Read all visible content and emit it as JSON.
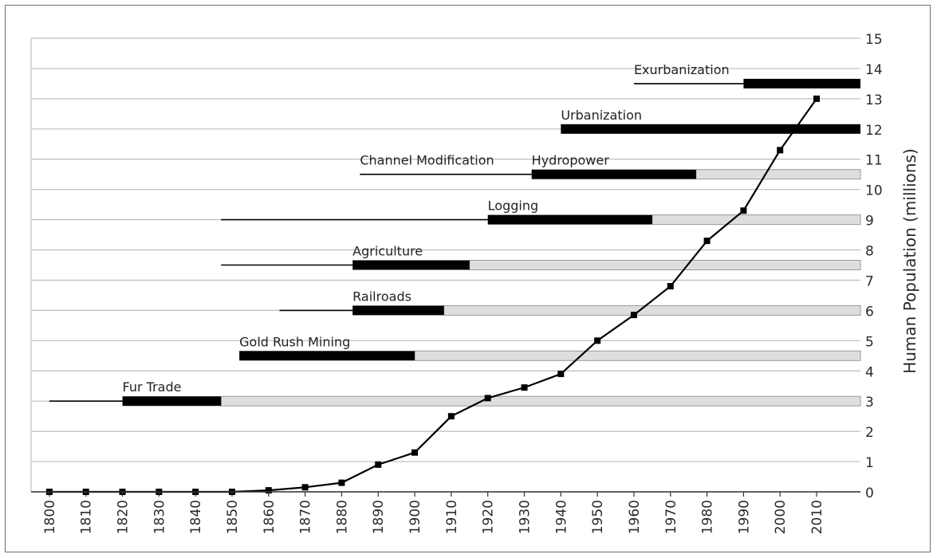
{
  "chart_data": {
    "type": "line",
    "ylabel": "Human Population (millions)",
    "xlabel": "",
    "x": [
      1800,
      1810,
      1820,
      1830,
      1840,
      1850,
      1860,
      1870,
      1880,
      1890,
      1900,
      1910,
      1920,
      1930,
      1940,
      1950,
      1960,
      1970,
      1980,
      1990,
      2000,
      2010
    ],
    "xlim": [
      1795,
      2022
    ],
    "ylim": [
      0,
      15
    ],
    "yticks": [
      0,
      1,
      2,
      3,
      4,
      5,
      6,
      7,
      8,
      9,
      10,
      11,
      12,
      13,
      14,
      15
    ],
    "xticks": [
      1800,
      1810,
      1820,
      1830,
      1840,
      1850,
      1860,
      1870,
      1880,
      1890,
      1900,
      1910,
      1920,
      1930,
      1940,
      1950,
      1960,
      1970,
      1980,
      1990,
      2000,
      2010
    ],
    "grid": true,
    "series": [
      {
        "values": [
          0,
          0,
          0,
          0,
          0,
          0,
          0.05,
          0.15,
          0.3,
          0.9,
          1.3,
          2.5,
          3.1,
          3.45,
          3.9,
          5.0,
          5.85,
          6.8,
          8.3,
          9.3,
          11.3,
          13.0
        ]
      }
    ],
    "activities": [
      {
        "label": "Fur Trade",
        "y": 3,
        "line_start": 1800,
        "bar_start": 1820,
        "bar_end": 1847,
        "gray_end": 2022
      },
      {
        "label": "Gold Rush Mining",
        "y": 4.5,
        "line_start": null,
        "bar_start": 1852,
        "bar_end": 1900,
        "gray_end": 2022
      },
      {
        "label": "Railroads",
        "y": 6,
        "line_start": 1863,
        "bar_start": 1883,
        "bar_end": 1908,
        "gray_end": 2022
      },
      {
        "label": "Agriculture",
        "y": 7.5,
        "line_start": 1847,
        "bar_start": 1883,
        "bar_end": 1915,
        "gray_end": 2022
      },
      {
        "label": "Logging",
        "y": 9,
        "line_start": 1847,
        "bar_start": 1920,
        "bar_end": 1965,
        "gray_end": 2022
      },
      {
        "label": "Channel Modification",
        "y": 10.5,
        "line_start": 1885,
        "bar_start": null,
        "bar_end": null,
        "gray_end": null
      },
      {
        "label": "Hydropower",
        "y": 10.5,
        "line_start": null,
        "bar_start": 1932,
        "bar_end": 1977,
        "gray_end": 2022
      },
      {
        "label": "Urbanization",
        "y": 12,
        "line_start": null,
        "bar_start": 1940,
        "bar_end": 2022,
        "gray_end": null
      },
      {
        "label": "Exurbanization",
        "y": 13.5,
        "line_start": 1960,
        "bar_start": 1990,
        "bar_end": 2022,
        "gray_end": null
      }
    ],
    "colors": {
      "line": "#000000",
      "bar": "#000000",
      "gray_bar": "#dedede",
      "gray_border": "#9a9a9a",
      "grid": "#bdbdbd"
    }
  }
}
